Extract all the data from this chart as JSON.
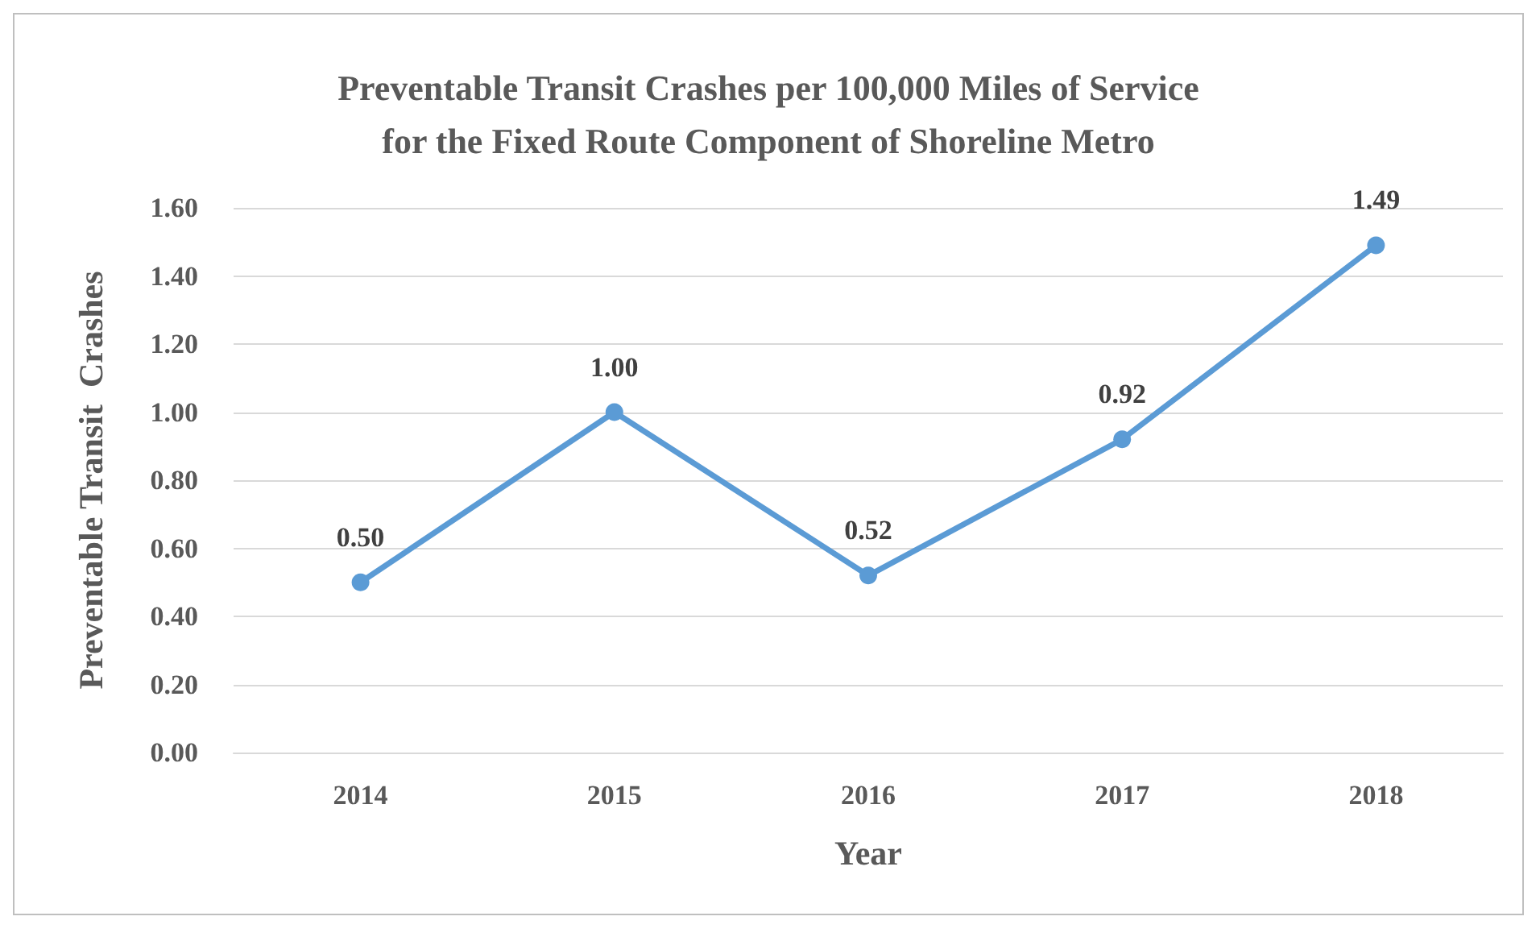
{
  "chart_data": {
    "type": "line",
    "title": "Preventable Transit Crashes per 100,000 Miles of Service\nfor the Fixed Route Component of Shoreline Metro",
    "xlabel": "Year",
    "ylabel": "Preventable Transit  Crashes",
    "categories": [
      "2014",
      "2015",
      "2016",
      "2017",
      "2018"
    ],
    "series": [
      {
        "color": "#5b9bd5",
        "values": [
          0.5,
          1.0,
          0.52,
          0.92,
          1.49
        ],
        "value_labels": [
          "0.50",
          "1.00",
          "0.52",
          "0.92",
          "1.49"
        ]
      }
    ],
    "ylim": [
      0,
      1.6
    ],
    "yticks": [
      {
        "value": 0,
        "label": "0.00"
      },
      {
        "value": 0.2,
        "label": "0.20"
      },
      {
        "value": 0.4,
        "label": "0.40"
      },
      {
        "value": 0.6,
        "label": "0.60"
      },
      {
        "value": 0.8,
        "label": "0.80"
      },
      {
        "value": 1.0,
        "label": "1.00"
      },
      {
        "value": 1.2,
        "label": "1.20"
      },
      {
        "value": 1.4,
        "label": "1.40"
      },
      {
        "value": 1.6,
        "label": "1.60"
      }
    ],
    "grid": "y",
    "marker": "circle",
    "line_style": "solid"
  }
}
